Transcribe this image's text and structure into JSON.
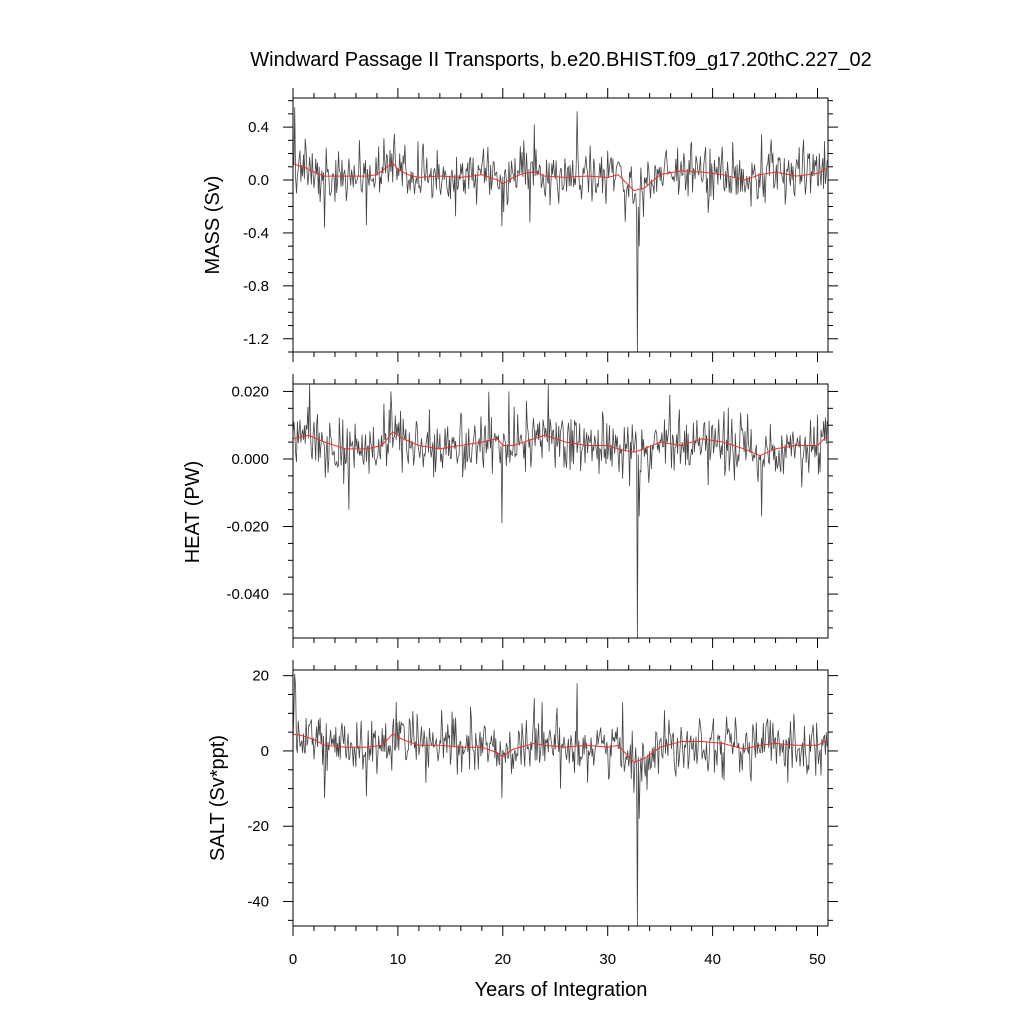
{
  "chart_data": {
    "type": "line",
    "title": "Windward Passage II Transports, b.e20.BHIST.f09_g17.20thC.227_02",
    "xlabel": "Years of Integration",
    "x_ticks": [
      0,
      10,
      20,
      30,
      40,
      50
    ],
    "xlim": [
      0,
      51
    ],
    "series_colors": {
      "raw": "#444444",
      "smoothed": "#e8302a"
    },
    "grid": false,
    "panels": [
      {
        "ylabel": "MASS (Sv)",
        "ylim": [
          -1.3,
          0.62
        ],
        "y_ticks": [
          0.4,
          0.0,
          -0.4,
          -0.8,
          -1.2
        ],
        "y_tick_labels": [
          "0.4",
          "0.0",
          "-0.4",
          "-0.8",
          "-1.2"
        ],
        "noise": 0.1,
        "smoothed": [
          [
            0,
            0.12
          ],
          [
            1,
            0.1
          ],
          [
            2,
            0.06
          ],
          [
            3,
            0.03
          ],
          [
            5,
            0.03
          ],
          [
            7,
            0.03
          ],
          [
            8,
            0.04
          ],
          [
            9,
            0.1
          ],
          [
            9.5,
            0.13
          ],
          [
            10,
            0.08
          ],
          [
            11,
            0.04
          ],
          [
            12,
            0.02
          ],
          [
            14,
            0.03
          ],
          [
            16,
            0.02
          ],
          [
            18,
            0.04
          ],
          [
            19.5,
            0.0
          ],
          [
            20,
            -0.03
          ],
          [
            21,
            0.02
          ],
          [
            22,
            0.05
          ],
          [
            23,
            0.06
          ],
          [
            24,
            0.03
          ],
          [
            26,
            0.02
          ],
          [
            28,
            0.03
          ],
          [
            30,
            0.02
          ],
          [
            31,
            0.04
          ],
          [
            32.5,
            -0.08
          ],
          [
            33.5,
            -0.06
          ],
          [
            35,
            0.04
          ],
          [
            37,
            0.07
          ],
          [
            39,
            0.06
          ],
          [
            41,
            0.04
          ],
          [
            43,
            0.0
          ],
          [
            44.5,
            0.04
          ],
          [
            46,
            0.06
          ],
          [
            48,
            0.03
          ],
          [
            50,
            0.05
          ],
          [
            51,
            0.09
          ]
        ],
        "spikes": [
          [
            0.2,
            0.55
          ],
          [
            0.35,
            -0.1
          ],
          [
            3,
            -0.36
          ],
          [
            7,
            -0.34
          ],
          [
            9.7,
            0.35
          ],
          [
            19.9,
            -0.35
          ],
          [
            23,
            0.42
          ],
          [
            27.1,
            0.52
          ],
          [
            32.8,
            -1.3
          ],
          [
            33.0,
            -0.5
          ]
        ]
      },
      {
        "ylabel": "HEAT (PW)",
        "ylim": [
          -0.053,
          0.0222
        ],
        "y_ticks": [
          0.02,
          0.0,
          -0.02,
          -0.04
        ],
        "y_tick_labels": [
          "0.020",
          "0.000",
          "-0.020",
          "-0.040"
        ],
        "noise": 0.0045,
        "smoothed": [
          [
            0,
            0.006
          ],
          [
            1.5,
            0.007
          ],
          [
            3,
            0.005
          ],
          [
            5,
            0.003
          ],
          [
            7,
            0.003
          ],
          [
            8.5,
            0.004
          ],
          [
            9.5,
            0.008
          ],
          [
            10.5,
            0.006
          ],
          [
            12,
            0.004
          ],
          [
            14,
            0.003
          ],
          [
            16,
            0.004
          ],
          [
            18,
            0.005
          ],
          [
            19.5,
            0.006
          ],
          [
            20,
            0.004
          ],
          [
            21,
            0.004
          ],
          [
            23,
            0.006
          ],
          [
            24,
            0.007
          ],
          [
            26,
            0.005
          ],
          [
            28,
            0.004
          ],
          [
            30,
            0.004
          ],
          [
            31,
            0.003
          ],
          [
            32.5,
            0.002
          ],
          [
            33.5,
            0.003
          ],
          [
            35,
            0.005
          ],
          [
            37,
            0.004
          ],
          [
            39,
            0.006
          ],
          [
            41,
            0.005
          ],
          [
            43,
            0.003
          ],
          [
            44.5,
            0.001
          ],
          [
            46,
            0.003
          ],
          [
            48,
            0.004
          ],
          [
            50,
            0.004
          ],
          [
            51,
            0.007
          ]
        ],
        "spikes": [
          [
            1.6,
            0.022
          ],
          [
            5.3,
            -0.015
          ],
          [
            9.3,
            0.02
          ],
          [
            19.9,
            -0.019
          ],
          [
            20.6,
            0.02
          ],
          [
            24.3,
            0.022
          ],
          [
            32.8,
            -0.053
          ],
          [
            33.0,
            -0.017
          ],
          [
            35.9,
            0.019
          ],
          [
            44.7,
            -0.017
          ]
        ]
      },
      {
        "ylabel": "SALT (Sv*ppt)",
        "ylim": [
          -46.5,
          21.5
        ],
        "y_ticks": [
          20,
          0,
          -20,
          -40
        ],
        "y_tick_labels": [
          "20",
          "0",
          "-20",
          "-40"
        ],
        "noise": 3.8,
        "smoothed": [
          [
            0,
            4.5
          ],
          [
            1,
            4.0
          ],
          [
            2,
            3.0
          ],
          [
            3,
            1.5
          ],
          [
            5,
            1.0
          ],
          [
            7,
            1.0
          ],
          [
            8.5,
            1.5
          ],
          [
            9.5,
            4.5
          ],
          [
            10.5,
            3.0
          ],
          [
            12,
            1.5
          ],
          [
            14,
            1.5
          ],
          [
            16,
            1.0
          ],
          [
            18,
            1.0
          ],
          [
            19.5,
            -0.5
          ],
          [
            20,
            -1.5
          ],
          [
            21,
            0.5
          ],
          [
            23,
            2.0
          ],
          [
            24,
            1.5
          ],
          [
            26,
            1.0
          ],
          [
            28,
            1.5
          ],
          [
            30,
            1.0
          ],
          [
            31,
            1.5
          ],
          [
            32.5,
            -3.0
          ],
          [
            33.5,
            -2.0
          ],
          [
            35,
            1.0
          ],
          [
            37,
            2.5
          ],
          [
            39,
            2.5
          ],
          [
            41,
            2.0
          ],
          [
            43,
            0.5
          ],
          [
            44.5,
            1.5
          ],
          [
            46,
            2.0
          ],
          [
            48,
            1.5
          ],
          [
            50,
            1.5
          ],
          [
            51,
            3.0
          ]
        ],
        "spikes": [
          [
            0.2,
            20.5
          ],
          [
            3,
            -12.5
          ],
          [
            7,
            -12
          ],
          [
            9.8,
            13
          ],
          [
            19.9,
            -12.5
          ],
          [
            23,
            14
          ],
          [
            25.5,
            -10
          ],
          [
            27.1,
            18
          ],
          [
            32.8,
            -46.5
          ],
          [
            33.0,
            -18
          ]
        ]
      }
    ]
  }
}
